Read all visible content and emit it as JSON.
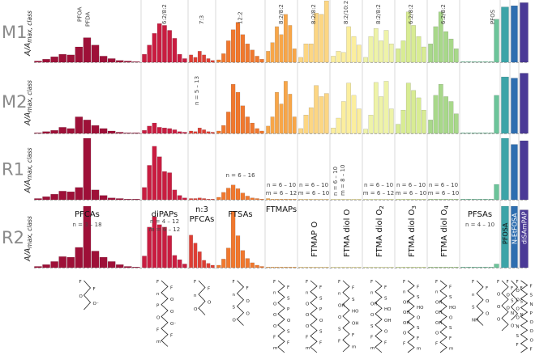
{
  "chart_data": {
    "type": "bar",
    "title": "",
    "ylabel": "A/A_max, class",
    "ylabel_parts": {
      "main": "A/A",
      "sub": "max, class"
    },
    "ylim": [
      0,
      1
    ],
    "grid": false,
    "rows": [
      "M1",
      "M2",
      "R1",
      "R2"
    ],
    "groups": [
      {
        "name": "PFCAs",
        "color": "#9e1038",
        "bars": 13,
        "chain_range": "n = 3 – 18",
        "chem_labels": [
          "F",
          "F",
          "O",
          "O⁻"
        ],
        "values": {
          "M1": [
            0.02,
            0.05,
            0.09,
            0.13,
            0.12,
            0.25,
            0.4,
            0.28,
            0.1,
            0.06,
            0.03,
            0.02,
            0.01
          ],
          "M2": [
            0.01,
            0.03,
            0.05,
            0.1,
            0.08,
            0.27,
            0.22,
            0.13,
            0.08,
            0.04,
            0.02,
            0.01,
            0.01
          ],
          "R1": [
            0.02,
            0.05,
            0.09,
            0.14,
            0.13,
            0.2,
            1.0,
            0.16,
            0.07,
            0.03,
            0.02,
            0.01,
            0.01
          ],
          "R2": [
            0.02,
            0.05,
            0.1,
            0.18,
            0.17,
            0.33,
            1.0,
            0.27,
            0.17,
            0.1,
            0.05,
            0.02,
            0.01
          ]
        }
      },
      {
        "name": "diPAPs",
        "color": "#c91c40",
        "bars": 9,
        "chain_range": "n = 4 – 12\nm = 6 – 12",
        "chem_labels": [
          "F",
          "F",
          "n",
          "O",
          "P",
          "O",
          "O",
          "O⁻",
          "F",
          "F",
          "m"
        ],
        "values": {
          "M1": [
            0.13,
            0.28,
            0.47,
            0.63,
            0.6,
            0.52,
            0.39,
            0.13,
            0.06
          ],
          "M2": [
            0.05,
            0.12,
            0.17,
            0.1,
            0.09,
            0.08,
            0.06,
            0.03,
            0.02
          ],
          "R1": [
            0.2,
            0.56,
            0.87,
            0.7,
            0.46,
            0.44,
            0.16,
            0.07,
            0.03
          ],
          "R2": [
            0.19,
            0.66,
            0.83,
            0.7,
            0.66,
            0.52,
            0.2,
            0.13,
            0.06
          ]
        }
      },
      {
        "name": "n:3 PFCAs",
        "color": "#de3e34",
        "bars": 6,
        "chain_range": "n = 5 – 13",
        "chem_labels": [
          "F",
          "F",
          "n",
          "O",
          "O⁻"
        ],
        "values": {
          "M1": [
            0.12,
            0.08,
            0.18,
            0.12,
            0.06,
            0.03
          ],
          "M2": [
            0.04,
            0.03,
            0.09,
            0.06,
            0.03,
            0.02
          ],
          "R1": [
            0.02,
            0.02,
            0.03,
            0.02,
            0.01,
            0.01
          ],
          "R2": [
            0.53,
            0.4,
            0.26,
            0.12,
            0.07,
            0.04
          ]
        }
      },
      {
        "name": "FTSAs",
        "color": "#f0782e",
        "bars": 10,
        "chain_range": "n = 6 – 16",
        "chem_labels": [
          "F",
          "F",
          "n",
          "O",
          "S",
          "O",
          "O⁻"
        ],
        "values": {
          "M1": [
            0.04,
            0.14,
            0.35,
            0.53,
            0.65,
            0.45,
            0.3,
            0.2,
            0.1,
            0.05
          ],
          "M2": [
            0.04,
            0.13,
            0.35,
            0.8,
            0.67,
            0.45,
            0.27,
            0.17,
            0.08,
            0.04
          ],
          "R1": [
            0.04,
            0.12,
            0.19,
            0.24,
            0.18,
            0.11,
            0.06,
            0.03,
            0.02,
            0.01
          ],
          "R2": [
            0.04,
            0.14,
            0.32,
            0.92,
            0.52,
            0.28,
            0.15,
            0.08,
            0.04,
            0.02
          ]
        }
      },
      {
        "name": "FTMAPs",
        "color": "#f8a648",
        "bars": 7,
        "chain_range": "n = 6 – 10\nm = 6 – 12",
        "chem_labels": [
          "F",
          "F",
          "n",
          "S",
          "O",
          "P",
          "O",
          "O",
          "O⁻",
          "S",
          "F",
          "F",
          "m"
        ],
        "values": {
          "M1": [
            0.18,
            0.32,
            0.58,
            0.45,
            0.78,
            0.6,
            0.22
          ],
          "M2": [
            0.12,
            0.27,
            0.67,
            0.48,
            0.85,
            0.64,
            0.27
          ],
          "R1": [
            0.02,
            0.01,
            0.01,
            0.01,
            0.01,
            0.01,
            0.01
          ],
          "R2": [
            0.01,
            0.01,
            0.01,
            0.01,
            0.01,
            0.01,
            0.01
          ]
        }
      },
      {
        "name": "FTMAP O",
        "color": "#fcd683",
        "bars": 6,
        "chain_range": "n = 6 – 10\nm = 6 – 10",
        "chem_labels": [
          "F",
          "F",
          "n",
          "S",
          "O",
          "P",
          "O",
          "O",
          "O",
          "S",
          "F",
          "F",
          "m"
        ],
        "values": {
          "M1": [
            0.08,
            0.3,
            0.3,
            0.8,
            0.78,
            1.0
          ],
          "M2": [
            0.08,
            0.3,
            0.42,
            0.78,
            0.6,
            0.65
          ],
          "R1": [
            0.01,
            0.01,
            0.01,
            0.01,
            0.01,
            0.01
          ],
          "R2": [
            0.01,
            0.01,
            0.01,
            0.01,
            0.01,
            0.01
          ]
        }
      },
      {
        "name": "FTMA diol O",
        "sub": "",
        "color": "#fbee9e",
        "bars": 6,
        "chain_range": "n = 6 – 10\nm = 8 – 10",
        "chem_labels": [
          "F",
          "F",
          "n",
          "S",
          "OH",
          "HO",
          "O",
          "OH",
          "S",
          "F",
          "F",
          "m"
        ],
        "values": {
          "M1": [
            0.1,
            0.18,
            0.16,
            0.58,
            0.42,
            0.28
          ],
          "M2": [
            0.09,
            0.25,
            0.52,
            0.82,
            0.62,
            0.4
          ],
          "R1": [
            0.01,
            0.01,
            0.01,
            0.01,
            0.01,
            0.01
          ],
          "R2": [
            0.01,
            0.01,
            0.01,
            0.01,
            0.01,
            0.01
          ]
        }
      },
      {
        "name": "FTMA diol O",
        "sub": "2",
        "color": "#eef3a8",
        "bars": 6,
        "chain_range": "n = 6 – 10\nm = 6 – 12",
        "chem_labels": [
          "F",
          "F",
          "n",
          "S",
          "OH",
          "HO",
          "O",
          "OH",
          "S",
          "O",
          "F",
          "F",
          "m"
        ],
        "values": {
          "M1": [
            0.08,
            0.42,
            0.55,
            0.35,
            0.52,
            0.3
          ],
          "M2": [
            0.07,
            0.3,
            0.83,
            0.6,
            0.85,
            0.4
          ],
          "R1": [
            0.01,
            0.01,
            0.01,
            0.01,
            0.01,
            0.01
          ],
          "R2": [
            0.01,
            0.01,
            0.01,
            0.01,
            0.01,
            0.01
          ]
        }
      },
      {
        "name": "FTMA diol O",
        "sub": "3",
        "color": "#d8ec93",
        "bars": 6,
        "chain_range": "n = 6 – 10\nm = 6 – 10",
        "chem_labels": [
          "F",
          "F",
          "n",
          "S",
          "OH",
          "HO",
          "OH",
          "O",
          "OH",
          "S",
          "O",
          "F",
          "F",
          "m"
        ],
        "values": {
          "M1": [
            0.22,
            0.35,
            0.82,
            0.6,
            0.42,
            0.25
          ],
          "M2": [
            0.15,
            0.38,
            0.82,
            0.7,
            0.58,
            0.38
          ],
          "R1": [
            0.01,
            0.01,
            0.01,
            0.01,
            0.01,
            0.01
          ],
          "R2": [
            0.01,
            0.01,
            0.01,
            0.01,
            0.01,
            0.01
          ]
        }
      },
      {
        "name": "FTMA diol O",
        "sub": "4",
        "color": "#a8d88a",
        "bars": 6,
        "chain_range": "n = 6 – 10\nm = 6 – 10",
        "chem_labels": [
          "F",
          "F",
          "n",
          "S",
          "OH",
          "HO",
          "OH",
          "O",
          "OH",
          "S",
          "O",
          "F",
          "F",
          "m"
        ],
        "values": {
          "M1": [
            0.3,
            0.58,
            0.82,
            0.5,
            0.38,
            0.22
          ],
          "M2": [
            0.22,
            0.62,
            0.8,
            0.6,
            0.52,
            0.32
          ],
          "R1": [
            0.01,
            0.01,
            0.01,
            0.01,
            0.01,
            0.01
          ],
          "R2": [
            0.01,
            0.01,
            0.01,
            0.01,
            0.01,
            0.01
          ]
        }
      },
      {
        "name": "PFSAs",
        "color": "#6cc49a",
        "bars": 7,
        "chain_range": "n = 4 – 10",
        "chem_labels": [
          "F",
          "F",
          "n",
          "O",
          "S",
          "O",
          "NH"
        ],
        "values": {
          "M1": [
            0.01,
            0.01,
            0.01,
            0.01,
            0.01,
            0.01,
            0.7
          ],
          "M2": [
            0.01,
            0.01,
            0.01,
            0.01,
            0.01,
            0.01,
            0.62
          ],
          "R1": [
            0.01,
            0.01,
            0.01,
            0.01,
            0.01,
            0.01,
            0.25
          ],
          "R2": [
            0.01,
            0.01,
            0.01,
            0.01,
            0.01,
            0.01,
            0.06
          ]
        }
      },
      {
        "name": "PFOSA",
        "color": "#3ca4a8",
        "bars": 1,
        "chain_range": "",
        "chem_labels": [
          "F",
          "F",
          "O",
          "S",
          "O",
          "N",
          "O",
          "O⁻"
        ],
        "values": {
          "M1": [
            0.9
          ],
          "M2": [
            0.92
          ],
          "R1": [
            1.0
          ],
          "R2": [
            1.0
          ]
        }
      },
      {
        "name": "N-EtFOSA",
        "color": "#2e6eb0",
        "bars": 1,
        "chain_range": "",
        "chem_labels": [
          "F",
          "F",
          "O",
          "S",
          "O",
          "N"
        ],
        "values": {
          "M1": [
            0.92
          ],
          "M2": [
            0.9
          ],
          "R1": [
            0.9
          ],
          "R2": [
            1.0
          ]
        }
      },
      {
        "name": "diSAmPAP",
        "color": "#4a3a96",
        "bars": 1,
        "chain_range": "",
        "chem_labels": [
          "F",
          "F",
          "O",
          "S",
          "O",
          "N",
          "O",
          "P",
          "O",
          "O",
          "N",
          "O",
          "S",
          "O",
          "F",
          "F"
        ],
        "values": {
          "M1": [
            0.97
          ],
          "M2": [
            0.98
          ],
          "R1": [
            0.96
          ],
          "R2": [
            0.94
          ]
        }
      }
    ],
    "annotations": [
      {
        "row": "M1",
        "group": 0,
        "bar": 5,
        "text": "PFOA"
      },
      {
        "row": "M1",
        "group": 0,
        "bar": 6,
        "text": "PFDA"
      },
      {
        "row": "M1",
        "group": 1,
        "text": "6:2/8:2"
      },
      {
        "row": "M1",
        "group": 2,
        "text": "7:3"
      },
      {
        "row": "M1",
        "group": 3,
        "text": "12:2"
      },
      {
        "row": "M1",
        "group": 4,
        "text": "8:2/8:2"
      },
      {
        "row": "M1",
        "group": 5,
        "text": "8:2/8:2"
      },
      {
        "row": "M1",
        "group": 6,
        "text": "8:2/10:2"
      },
      {
        "row": "M1",
        "group": 7,
        "text": "8:2/8:2"
      },
      {
        "row": "M1",
        "group": 8,
        "text": "6:2/8:2"
      },
      {
        "row": "M1",
        "group": 9,
        "text": "6:2/8:2"
      },
      {
        "row": "M1",
        "group": 10,
        "text": "PFOS"
      }
    ]
  }
}
